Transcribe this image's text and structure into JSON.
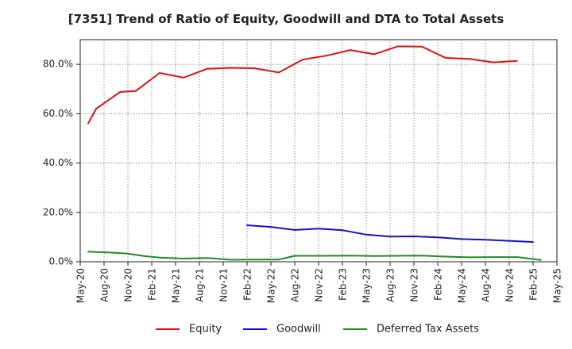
{
  "chart_data": {
    "type": "line",
    "title": "[7351]  Trend of Ratio of Equity, Goodwill and DTA to Total Assets",
    "xlabel": "",
    "ylabel": "",
    "ylim": [
      0,
      90
    ],
    "yticks": [
      0,
      20,
      40,
      60,
      80
    ],
    "ytick_labels": [
      "0.0%",
      "20.0%",
      "40.0%",
      "60.0%",
      "80.0%"
    ],
    "categories": [
      "May-20",
      "Aug-20",
      "Nov-20",
      "Feb-21",
      "May-21",
      "Aug-21",
      "Nov-21",
      "Feb-22",
      "May-22",
      "Aug-22",
      "Nov-22",
      "Feb-23",
      "May-23",
      "Aug-23",
      "Nov-23",
      "Feb-24",
      "May-24",
      "Aug-24",
      "Nov-24",
      "Feb-25",
      "May-25"
    ],
    "grid": true,
    "legend_position": "bottom",
    "series": [
      {
        "name": "Equity",
        "color": "#dd1111",
        "points": [
          {
            "x": 0.33,
            "y": 56.0
          },
          {
            "x": 0.67,
            "y": 62.0
          },
          {
            "x": 1.67,
            "y": 68.8
          },
          {
            "x": 2.33,
            "y": 69.2
          },
          {
            "x": 3.33,
            "y": 76.5
          },
          {
            "x": 4.33,
            "y": 74.6
          },
          {
            "x": 5.33,
            "y": 78.2
          },
          {
            "x": 6.33,
            "y": 78.6
          },
          {
            "x": 7.33,
            "y": 78.4
          },
          {
            "x": 8.33,
            "y": 76.7
          },
          {
            "x": 9.33,
            "y": 81.9
          },
          {
            "x": 10.33,
            "y": 83.5
          },
          {
            "x": 11.33,
            "y": 85.8
          },
          {
            "x": 12.33,
            "y": 84.1
          },
          {
            "x": 13.33,
            "y": 87.3
          },
          {
            "x": 14.33,
            "y": 87.2
          },
          {
            "x": 15.33,
            "y": 82.6
          },
          {
            "x": 16.33,
            "y": 82.2
          },
          {
            "x": 17.33,
            "y": 80.8
          },
          {
            "x": 18.33,
            "y": 81.4
          }
        ]
      },
      {
        "name": "Goodwill",
        "color": "#1111cc",
        "points": [
          {
            "x": 7.0,
            "y": 14.8
          },
          {
            "x": 8.0,
            "y": 14.1
          },
          {
            "x": 9.0,
            "y": 12.9
          },
          {
            "x": 10.0,
            "y": 13.4
          },
          {
            "x": 11.0,
            "y": 12.8
          },
          {
            "x": 12.0,
            "y": 11.0
          },
          {
            "x": 13.0,
            "y": 10.2
          },
          {
            "x": 14.0,
            "y": 10.3
          },
          {
            "x": 15.0,
            "y": 9.9
          },
          {
            "x": 16.0,
            "y": 9.2
          },
          {
            "x": 17.0,
            "y": 8.9
          },
          {
            "x": 18.0,
            "y": 8.5
          },
          {
            "x": 19.0,
            "y": 8.0
          }
        ]
      },
      {
        "name": "Deferred Tax Assets",
        "color": "#228b22",
        "points": [
          {
            "x": 0.33,
            "y": 4.1
          },
          {
            "x": 1.33,
            "y": 3.7
          },
          {
            "x": 2.0,
            "y": 3.3
          },
          {
            "x": 2.67,
            "y": 2.3
          },
          {
            "x": 3.33,
            "y": 1.7
          },
          {
            "x": 4.33,
            "y": 1.3
          },
          {
            "x": 5.33,
            "y": 1.5
          },
          {
            "x": 6.33,
            "y": 0.8
          },
          {
            "x": 7.33,
            "y": 0.9
          },
          {
            "x": 8.33,
            "y": 0.9
          },
          {
            "x": 9.0,
            "y": 2.4
          },
          {
            "x": 10.33,
            "y": 2.4
          },
          {
            "x": 11.33,
            "y": 2.5
          },
          {
            "x": 12.33,
            "y": 2.3
          },
          {
            "x": 13.33,
            "y": 2.4
          },
          {
            "x": 14.33,
            "y": 2.5
          },
          {
            "x": 15.33,
            "y": 2.1
          },
          {
            "x": 16.33,
            "y": 1.8
          },
          {
            "x": 17.33,
            "y": 1.9
          },
          {
            "x": 18.33,
            "y": 1.9
          },
          {
            "x": 19.33,
            "y": 0.7
          }
        ]
      }
    ]
  }
}
